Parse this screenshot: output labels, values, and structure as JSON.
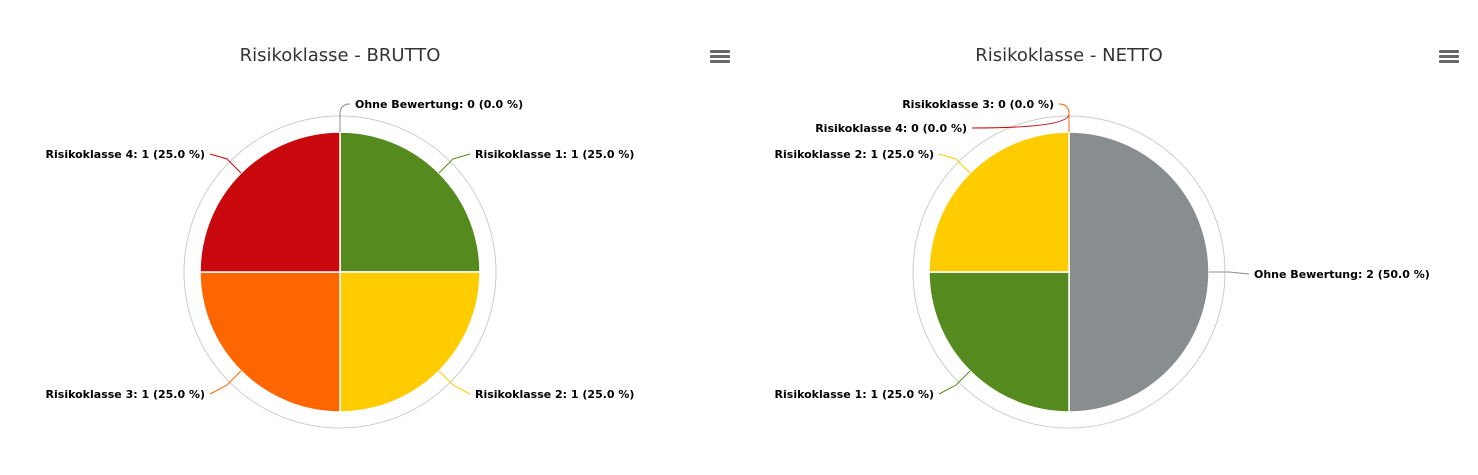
{
  "chart_data": [
    {
      "type": "pie",
      "title": "Risikoklasse - BRUTTO",
      "slices": [
        {
          "label": "Risikoklasse 1",
          "value": 1,
          "percent": "25.0",
          "color": "#558b1e"
        },
        {
          "label": "Risikoklasse 2",
          "value": 1,
          "percent": "25.0",
          "color": "#ffcc00"
        },
        {
          "label": "Risikoklasse 3",
          "value": 1,
          "percent": "25.0",
          "color": "#ff6600"
        },
        {
          "label": "Risikoklasse 4",
          "value": 1,
          "percent": "25.0",
          "color": "#c8080c"
        },
        {
          "label": "Ohne Bewertung",
          "value": 0,
          "percent": "0.0",
          "color": "#888e8f"
        }
      ]
    },
    {
      "type": "pie",
      "title": "Risikoklasse - NETTO",
      "slices": [
        {
          "label": "Ohne Bewertung",
          "value": 2,
          "percent": "50.0",
          "color": "#888e8f"
        },
        {
          "label": "Risikoklasse 1",
          "value": 1,
          "percent": "25.0",
          "color": "#558b1e"
        },
        {
          "label": "Risikoklasse 2",
          "value": 1,
          "percent": "25.0",
          "color": "#ffcc00"
        },
        {
          "label": "Risikoklasse 4",
          "value": 0,
          "percent": "0.0",
          "color": "#c8080c"
        },
        {
          "label": "Risikoklasse 3",
          "value": 0,
          "percent": "0.0",
          "color": "#ff6600"
        }
      ]
    }
  ],
  "menu": {
    "icon": "hamburger-menu-icon"
  }
}
